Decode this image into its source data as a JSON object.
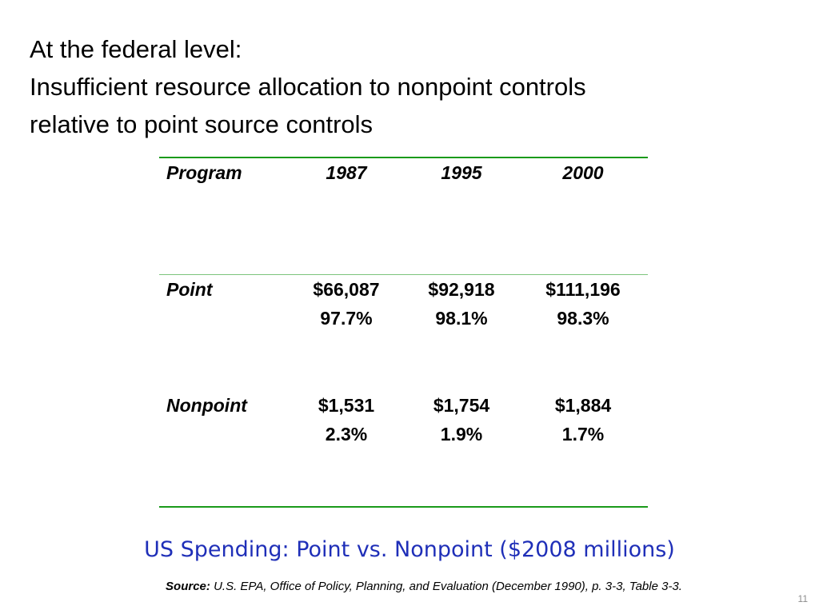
{
  "heading": {
    "line1": "At the federal level:",
    "line2": "Insufficient resource allocation to nonpoint controls",
    "line3": "relative to point source controls"
  },
  "table": {
    "columns": [
      "Program",
      "1987",
      "1995",
      "2000"
    ],
    "rows": [
      {
        "label": "Point",
        "values": [
          {
            "amount": "$66,087",
            "share": "97.7%"
          },
          {
            "amount": "$92,918",
            "share": "98.1%"
          },
          {
            "amount": "$111,196",
            "share": "98.3%"
          }
        ]
      },
      {
        "label": "Nonpoint",
        "values": [
          {
            "amount": "$1,531",
            "share": "2.3%"
          },
          {
            "amount": "$1,754",
            "share": "1.9%"
          },
          {
            "amount": "$1,884",
            "share": "1.7%"
          }
        ]
      }
    ]
  },
  "caption": "US Spending: Point vs. Nonpoint ($2008 millions)",
  "source": {
    "label": "Source:",
    "text": "U.S. EPA, Office of Policy, Planning, and Evaluation (December 1990), p. 3-3, Table 3-3."
  },
  "page_number": "11",
  "colors": {
    "rule": "#1a9a1a",
    "caption": "#1f2fb8",
    "page_number": "#8c8c8c"
  }
}
